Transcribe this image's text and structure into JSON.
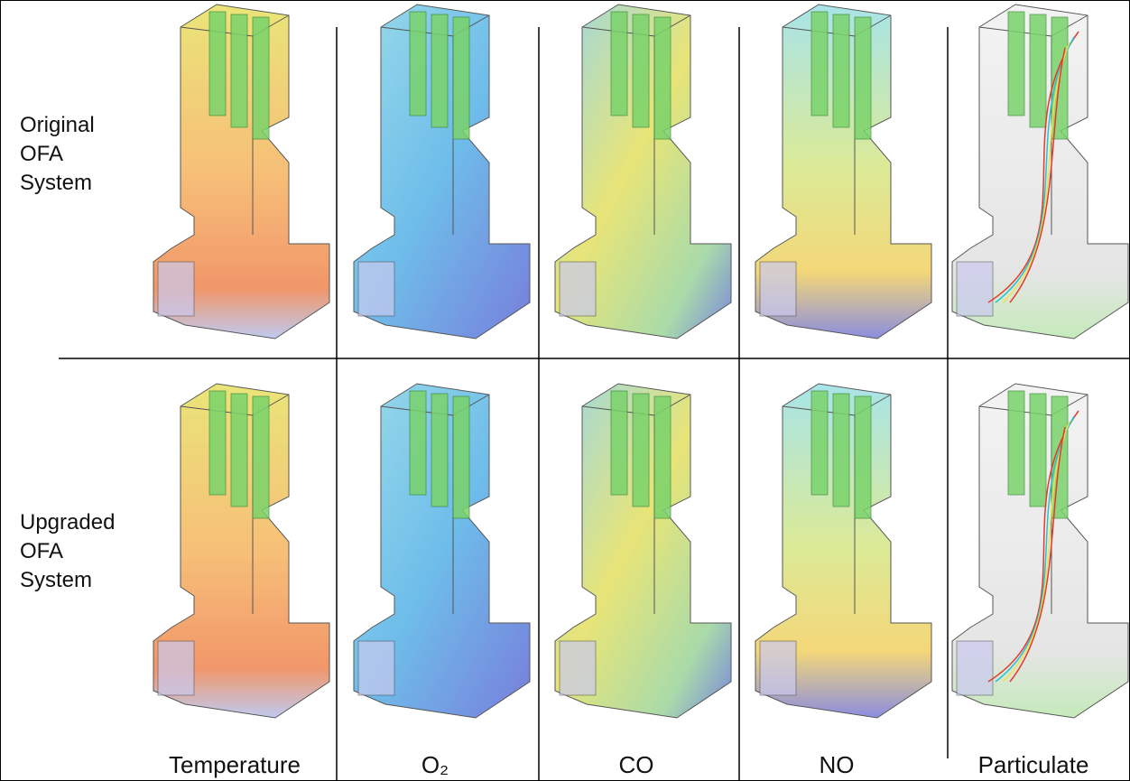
{
  "row_labels": [
    [
      "Original",
      "OFA",
      "System"
    ],
    [
      "Upgraded",
      "OFA",
      "System"
    ]
  ],
  "column_labels": [
    "Temperature",
    "O₂",
    "CO",
    "NO",
    "Particulate"
  ]
}
